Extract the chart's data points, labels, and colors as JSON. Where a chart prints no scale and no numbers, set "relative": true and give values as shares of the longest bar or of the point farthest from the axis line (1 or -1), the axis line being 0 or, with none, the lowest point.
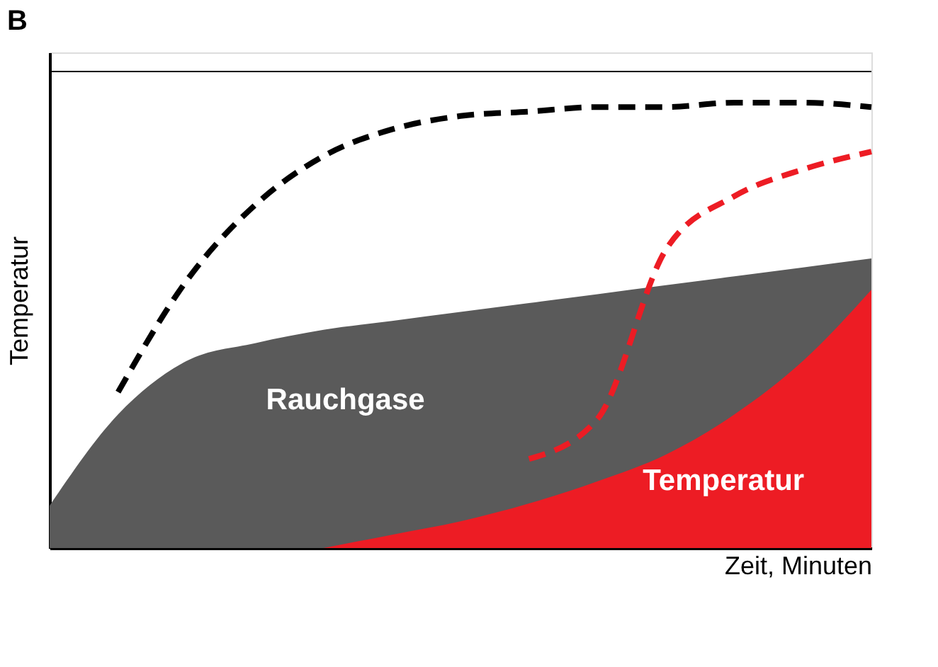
{
  "chart_data": {
    "type": "area",
    "title": "B",
    "xlabel": "Zeit, Minuten",
    "ylabel": "Temperatur",
    "relative": true,
    "tick_labels": false,
    "grid": false,
    "legend": false,
    "categories": [
      null,
      null,
      null,
      null,
      null,
      null,
      null,
      null,
      null,
      null,
      null,
      null,
      null
    ],
    "series": [
      {
        "name": "Rauchgase",
        "color": "#5a5a5a",
        "values": [
          0.095,
          0.3,
          0.42,
          0.46,
          0.49,
          0.51,
          0.53,
          0.55,
          0.57,
          0.59,
          0.61,
          0.63,
          0.65
        ]
      },
      {
        "name": "Temperatur",
        "color": "#ed1c24",
        "values": [
          null,
          null,
          null,
          null,
          0,
          0.03,
          0.06,
          0.1,
          0.15,
          0.21,
          0.3,
          0.42,
          0.58
        ]
      },
      {
        "type": "line",
        "color": "#000000",
        "line_style": "dashed",
        "values": [
          null,
          0.35,
          0.6,
          0.77,
          0.88,
          0.94,
          0.97,
          0.98,
          0.99,
          0.99,
          1.0,
          1.0,
          0.99
        ]
      },
      {
        "type": "line",
        "color": "#ed1c24",
        "line_style": "dashed",
        "values": [
          null,
          null,
          null,
          null,
          null,
          null,
          null,
          0.2,
          0.29,
          0.67,
          0.79,
          0.85,
          0.89
        ]
      }
    ],
    "ref_lines": [
      {
        "axis": "y",
        "value": 1.07,
        "color": "#000000"
      }
    ]
  }
}
